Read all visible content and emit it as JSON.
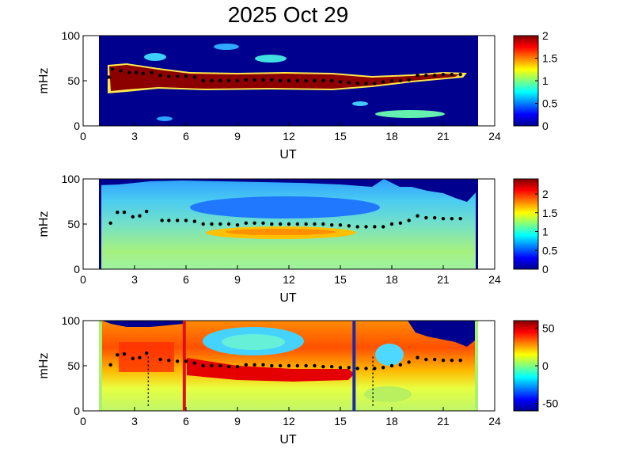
{
  "title": "2025 Oct 29",
  "chart_data": [
    {
      "type": "heatmap",
      "xlabel": "UT",
      "ylabel": "mHz",
      "xlim": [
        0,
        24
      ],
      "ylim": [
        0,
        100
      ],
      "xticks": [
        "0",
        "3",
        "6",
        "9",
        "12",
        "15",
        "18",
        "21",
        "24"
      ],
      "yticks": [
        "0",
        "50",
        "100"
      ],
      "data_x_range": [
        1,
        23
      ],
      "colorbar": {
        "range": [
          0,
          2
        ],
        "ticks": [
          "0",
          "0.5",
          "1",
          "1.5",
          "2"
        ]
      },
      "peak_frequency_mHz": [
        [
          1.5,
          54
        ],
        [
          1.7,
          63
        ],
        [
          2.2,
          61
        ],
        [
          2.7,
          59
        ],
        [
          3.1,
          59
        ],
        [
          3.5,
          58
        ],
        [
          4.0,
          59
        ],
        [
          4.5,
          56
        ],
        [
          5.0,
          55
        ],
        [
          5.5,
          55
        ],
        [
          6.0,
          55
        ],
        [
          6.5,
          54
        ],
        [
          7.0,
          50
        ],
        [
          7.5,
          50
        ],
        [
          8.0,
          50
        ],
        [
          8.5,
          50
        ],
        [
          9.0,
          50
        ],
        [
          9.5,
          51
        ],
        [
          10.0,
          51
        ],
        [
          10.5,
          51
        ],
        [
          11.0,
          51
        ],
        [
          11.5,
          50
        ],
        [
          12.0,
          50
        ],
        [
          12.5,
          50
        ],
        [
          13.0,
          50
        ],
        [
          13.5,
          50
        ],
        [
          14.0,
          50
        ],
        [
          14.5,
          50
        ],
        [
          15.0,
          49
        ],
        [
          15.5,
          48
        ],
        [
          16.0,
          47
        ],
        [
          16.5,
          47
        ],
        [
          17.0,
          47
        ],
        [
          17.5,
          49
        ],
        [
          18.0,
          50
        ],
        [
          18.5,
          50
        ],
        [
          19.0,
          51
        ],
        [
          19.5,
          56
        ],
        [
          20.0,
          56
        ],
        [
          20.5,
          56
        ],
        [
          21.0,
          57
        ],
        [
          21.5,
          57
        ],
        [
          22.0,
          57
        ]
      ]
    },
    {
      "type": "heatmap",
      "xlabel": "UT",
      "ylabel": "mHz",
      "xlim": [
        0,
        24
      ],
      "ylim": [
        0,
        100
      ],
      "xticks": [
        "0",
        "3",
        "6",
        "9",
        "12",
        "15",
        "18",
        "21",
        "24"
      ],
      "yticks": [
        "0",
        "50",
        "100"
      ],
      "data_x_range": [
        1,
        23
      ],
      "colorbar": {
        "range": [
          0,
          2.4
        ],
        "ticks": [
          "0",
          "0.5",
          "1",
          "1.5",
          "2"
        ]
      },
      "peak_frequency_mHz": [
        [
          1.6,
          51
        ],
        [
          2.0,
          63
        ],
        [
          2.4,
          63
        ],
        [
          2.9,
          58
        ],
        [
          3.3,
          59
        ],
        [
          3.7,
          64
        ],
        [
          4.6,
          54
        ],
        [
          5.0,
          54
        ],
        [
          5.5,
          54
        ],
        [
          6.0,
          54
        ],
        [
          6.5,
          53
        ],
        [
          7.0,
          50
        ],
        [
          7.5,
          50
        ],
        [
          8.0,
          50
        ],
        [
          8.5,
          50
        ],
        [
          9.0,
          49
        ],
        [
          9.5,
          51
        ],
        [
          10.0,
          51
        ],
        [
          10.5,
          51
        ],
        [
          11.0,
          50
        ],
        [
          11.5,
          50
        ],
        [
          12.0,
          50
        ],
        [
          12.5,
          50
        ],
        [
          13.0,
          50
        ],
        [
          13.5,
          50
        ],
        [
          14.0,
          50
        ],
        [
          14.5,
          49
        ],
        [
          15.0,
          49
        ],
        [
          15.5,
          48
        ],
        [
          16.0,
          47
        ],
        [
          16.5,
          47
        ],
        [
          17.0,
          47
        ],
        [
          17.5,
          47
        ],
        [
          18.0,
          50
        ],
        [
          18.5,
          51
        ],
        [
          19.0,
          54
        ],
        [
          19.5,
          59
        ],
        [
          20.0,
          57
        ],
        [
          20.5,
          57
        ],
        [
          21.0,
          56
        ],
        [
          21.5,
          56
        ],
        [
          22.0,
          56
        ]
      ]
    },
    {
      "type": "heatmap",
      "xlabel": "UT",
      "ylabel": "mHz",
      "xlim": [
        0,
        24
      ],
      "ylim": [
        0,
        100
      ],
      "xticks": [
        "0",
        "3",
        "6",
        "9",
        "12",
        "15",
        "18",
        "21",
        "24"
      ],
      "yticks": [
        "0",
        "50",
        "100"
      ],
      "data_x_range": [
        1,
        23
      ],
      "colorbar": {
        "range": [
          -60,
          60
        ],
        "ticks": [
          "50",
          "0",
          "-50"
        ]
      },
      "vertical_lines_UT": [
        {
          "x": 3.8,
          "color": "#000000",
          "style": "dotted"
        },
        {
          "x": 5.9,
          "color": "#dd1111",
          "style": "solid"
        },
        {
          "x": 15.8,
          "color": "#1a2aa8",
          "style": "solid"
        },
        {
          "x": 16.9,
          "color": "#000000",
          "style": "dotted"
        }
      ],
      "peak_frequency_mHz": [
        [
          1.6,
          51
        ],
        [
          2.0,
          62
        ],
        [
          2.4,
          63
        ],
        [
          2.9,
          58
        ],
        [
          3.3,
          59
        ],
        [
          3.7,
          64
        ],
        [
          4.5,
          57
        ],
        [
          5.0,
          56
        ],
        [
          5.5,
          55
        ],
        [
          6.0,
          55
        ],
        [
          6.5,
          53
        ],
        [
          7.0,
          50
        ],
        [
          7.5,
          50
        ],
        [
          8.0,
          50
        ],
        [
          8.5,
          49
        ],
        [
          9.0,
          49
        ],
        [
          9.5,
          51
        ],
        [
          10.0,
          51
        ],
        [
          10.5,
          51
        ],
        [
          11.0,
          50
        ],
        [
          11.5,
          50
        ],
        [
          12.0,
          50
        ],
        [
          12.5,
          50
        ],
        [
          13.0,
          50
        ],
        [
          13.5,
          50
        ],
        [
          14.0,
          49
        ],
        [
          14.5,
          49
        ],
        [
          15.0,
          48
        ],
        [
          15.5,
          48
        ],
        [
          16.0,
          47
        ],
        [
          16.5,
          47
        ],
        [
          17.0,
          47
        ],
        [
          17.5,
          48
        ],
        [
          18.0,
          50
        ],
        [
          18.5,
          51
        ],
        [
          19.0,
          54
        ],
        [
          19.5,
          59
        ],
        [
          20.0,
          57
        ],
        [
          20.5,
          57
        ],
        [
          21.0,
          56
        ],
        [
          21.5,
          56
        ],
        [
          22.0,
          56
        ]
      ]
    }
  ]
}
